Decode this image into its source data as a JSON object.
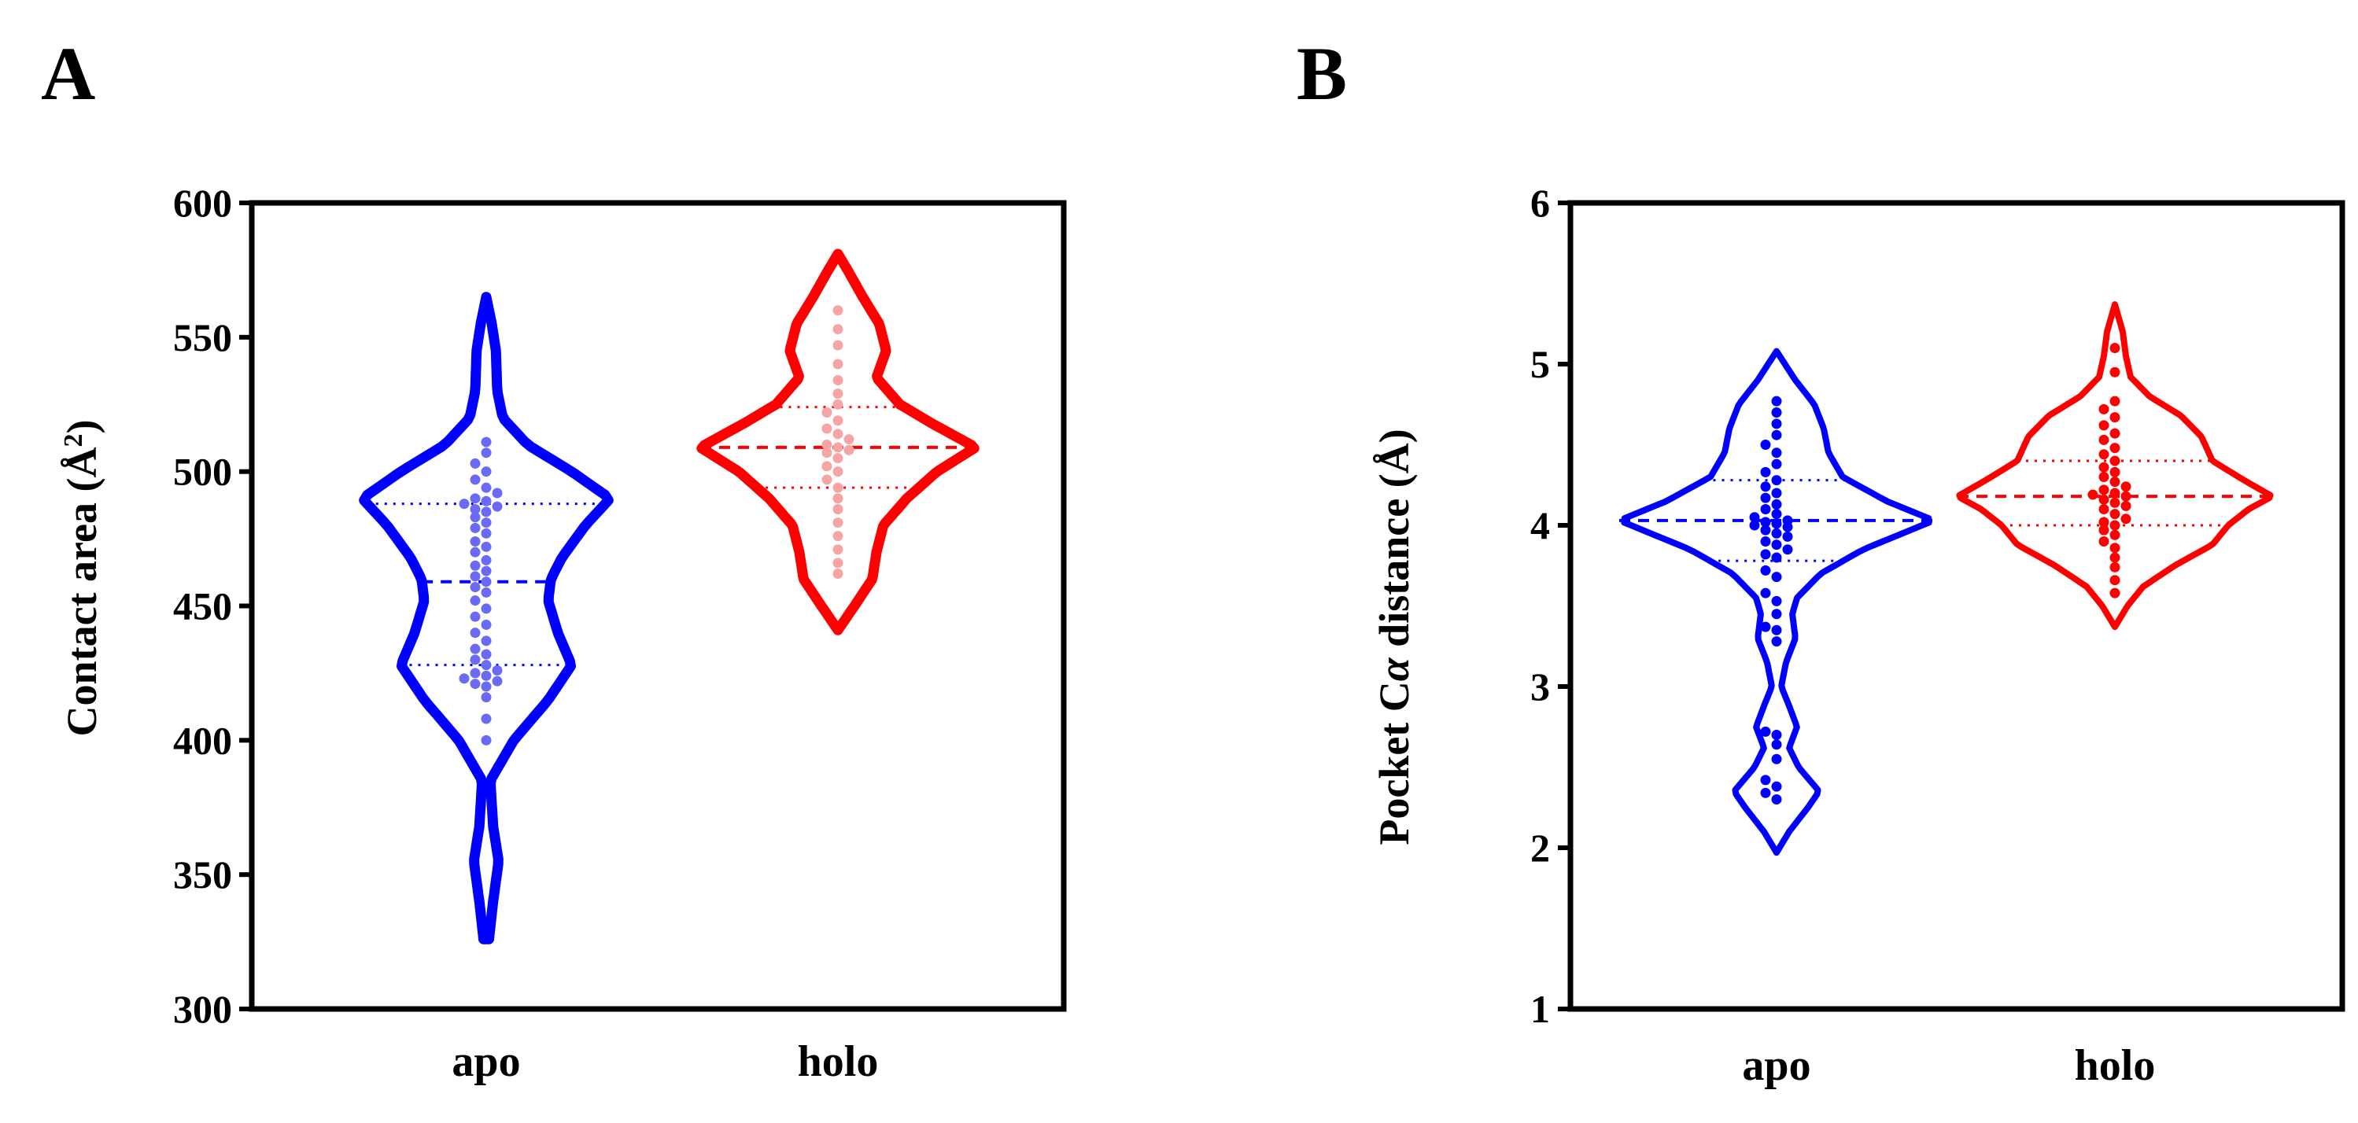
{
  "figure": {
    "panels": [
      "A",
      "B"
    ]
  },
  "colors": {
    "apo": "#0000ff",
    "holo": "#ff0000",
    "apo_points_A": "#6a6af5",
    "holo_points_A": "#f7a4a4",
    "axes": "#000000"
  },
  "chart_data": [
    {
      "panel": "A",
      "type": "violin",
      "categories": [
        "apo",
        "holo"
      ],
      "ylabel": "Contact area (Å²)",
      "ylabel_main": "Contact area (Å",
      "ylabel_sup": "2",
      "ylabel_close": ")",
      "ylim": [
        300,
        600
      ],
      "yticks": [
        300,
        350,
        400,
        450,
        500,
        550,
        600
      ],
      "grid": false,
      "legend": "none",
      "series": [
        {
          "category": "apo",
          "range": [
            326,
            565
          ],
          "median": 459,
          "quartiles": [
            428,
            488
          ],
          "density": [
            [
              326,
              0.02
            ],
            [
              340,
              0.05
            ],
            [
              355,
              0.09
            ],
            [
              368,
              0.05
            ],
            [
              385,
              0.03
            ],
            [
              400,
              0.2
            ],
            [
              415,
              0.45
            ],
            [
              428,
              0.62
            ],
            [
              440,
              0.52
            ],
            [
              452,
              0.45
            ],
            [
              460,
              0.47
            ],
            [
              468,
              0.55
            ],
            [
              480,
              0.72
            ],
            [
              490,
              0.9
            ],
            [
              500,
              0.62
            ],
            [
              510,
              0.3
            ],
            [
              520,
              0.12
            ],
            [
              530,
              0.08
            ],
            [
              545,
              0.07
            ],
            [
              555,
              0.04
            ],
            [
              565,
              0.0
            ]
          ],
          "points": [
            400,
            408,
            416,
            420,
            421,
            422,
            423,
            424,
            425,
            426,
            428,
            430,
            432,
            434,
            437,
            440,
            443,
            446,
            449,
            452,
            455,
            457,
            459,
            461,
            463,
            465,
            467,
            470,
            472,
            474,
            477,
            479,
            481,
            483,
            485,
            486,
            487,
            488,
            489,
            490,
            492,
            494,
            497,
            500,
            503,
            507,
            511
          ]
        },
        {
          "category": "holo",
          "range": [
            441,
            581
          ],
          "median": 509,
          "quartiles": [
            494,
            524
          ],
          "density": [
            [
              441,
              0.0
            ],
            [
              450,
              0.12
            ],
            [
              460,
              0.25
            ],
            [
              470,
              0.28
            ],
            [
              480,
              0.33
            ],
            [
              490,
              0.5
            ],
            [
              500,
              0.72
            ],
            [
              509,
              1.0
            ],
            [
              518,
              0.68
            ],
            [
              525,
              0.45
            ],
            [
              535,
              0.28
            ],
            [
              545,
              0.35
            ],
            [
              555,
              0.3
            ],
            [
              565,
              0.18
            ],
            [
              575,
              0.07
            ],
            [
              581,
              0.0
            ]
          ],
          "points": [
            462,
            466,
            471,
            476,
            481,
            486,
            490,
            494,
            497,
            500,
            502,
            505,
            507,
            508,
            509,
            510,
            512,
            514,
            516,
            519,
            522,
            525,
            529,
            534,
            540,
            547,
            553,
            560
          ]
        }
      ]
    },
    {
      "panel": "B",
      "type": "violin",
      "categories": [
        "apo",
        "holo"
      ],
      "ylabel": "Pocket Cα distance (Å)",
      "ylabel_pre": "Pocket C",
      "ylabel_greek": "α",
      "ylabel_post": " distance (Å)",
      "ylim": [
        1,
        6
      ],
      "yticks": [
        1,
        2,
        3,
        4,
        5,
        6
      ],
      "grid": false,
      "legend": "none",
      "series": [
        {
          "category": "apo",
          "range": [
            1.97,
            5.08
          ],
          "median": 4.03,
          "quartiles": [
            3.78,
            4.28
          ],
          "density": [
            [
              1.97,
              0.0
            ],
            [
              2.1,
              0.08
            ],
            [
              2.25,
              0.2
            ],
            [
              2.35,
              0.27
            ],
            [
              2.5,
              0.14
            ],
            [
              2.62,
              0.08
            ],
            [
              2.75,
              0.13
            ],
            [
              2.88,
              0.08
            ],
            [
              3.0,
              0.03
            ],
            [
              3.15,
              0.06
            ],
            [
              3.3,
              0.12
            ],
            [
              3.45,
              0.1
            ],
            [
              3.55,
              0.13
            ],
            [
              3.7,
              0.28
            ],
            [
              3.85,
              0.55
            ],
            [
              4.03,
              1.0
            ],
            [
              4.15,
              0.7
            ],
            [
              4.3,
              0.42
            ],
            [
              4.45,
              0.33
            ],
            [
              4.6,
              0.3
            ],
            [
              4.75,
              0.24
            ],
            [
              4.9,
              0.12
            ],
            [
              5.08,
              0.0
            ]
          ],
          "points": [
            2.3,
            2.34,
            2.38,
            2.42,
            2.55,
            2.64,
            2.7,
            2.72,
            3.28,
            3.35,
            3.37,
            3.45,
            3.53,
            3.58,
            3.68,
            3.72,
            3.8,
            3.82,
            3.85,
            3.88,
            3.9,
            3.93,
            3.95,
            3.97,
            3.99,
            4.0,
            4.01,
            4.02,
            4.03,
            4.05,
            4.07,
            4.1,
            4.13,
            4.17,
            4.2,
            4.24,
            4.28,
            4.33,
            4.38,
            4.45,
            4.5,
            4.56,
            4.63,
            4.7,
            4.77
          ]
        },
        {
          "category": "holo",
          "range": [
            3.37,
            5.37
          ],
          "median": 4.18,
          "quartiles": [
            4.0,
            4.4
          ],
          "density": [
            [
              3.37,
              0.0
            ],
            [
              3.5,
              0.08
            ],
            [
              3.62,
              0.18
            ],
            [
              3.75,
              0.38
            ],
            [
              3.88,
              0.62
            ],
            [
              4.0,
              0.72
            ],
            [
              4.1,
              0.85
            ],
            [
              4.18,
              1.0
            ],
            [
              4.28,
              0.82
            ],
            [
              4.4,
              0.62
            ],
            [
              4.55,
              0.55
            ],
            [
              4.68,
              0.42
            ],
            [
              4.8,
              0.22
            ],
            [
              4.92,
              0.1
            ],
            [
              5.05,
              0.07
            ],
            [
              5.2,
              0.05
            ],
            [
              5.37,
              0.0
            ]
          ],
          "points": [
            3.58,
            3.66,
            3.74,
            3.8,
            3.86,
            3.9,
            3.94,
            3.97,
            4.0,
            4.02,
            4.04,
            4.07,
            4.1,
            4.12,
            4.14,
            4.16,
            4.18,
            4.19,
            4.2,
            4.22,
            4.24,
            4.27,
            4.3,
            4.33,
            4.36,
            4.4,
            4.44,
            4.48,
            4.53,
            4.57,
            4.62,
            4.67,
            4.72,
            4.77,
            4.95,
            5.1
          ]
        }
      ]
    }
  ]
}
